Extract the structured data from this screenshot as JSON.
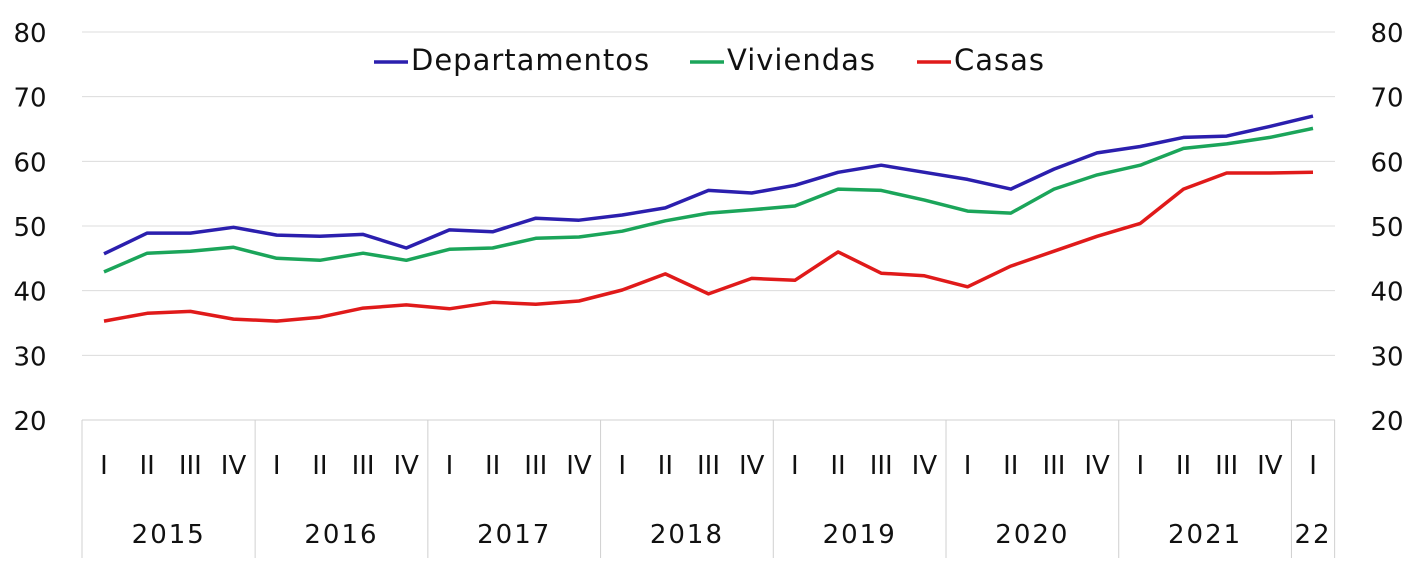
{
  "chart_data": {
    "type": "line",
    "title": "",
    "xlabel": "",
    "ylabel": "",
    "ylim": [
      20,
      80
    ],
    "yticks": [
      "20",
      "30",
      "40",
      "50",
      "60",
      "70",
      "80"
    ],
    "grid": true,
    "legend_position": "top-center",
    "quarters": [
      "I",
      "II",
      "III",
      "IV",
      "I",
      "II",
      "III",
      "IV",
      "I",
      "II",
      "III",
      "IV",
      "I",
      "II",
      "III",
      "IV",
      "I",
      "II",
      "III",
      "IV",
      "I",
      "II",
      "III",
      "IV",
      "I",
      "II",
      "III",
      "IV",
      "I"
    ],
    "years": [
      {
        "label": "2015",
        "quarters": 4
      },
      {
        "label": "2016",
        "quarters": 4
      },
      {
        "label": "2017",
        "quarters": 4
      },
      {
        "label": "2018",
        "quarters": 4
      },
      {
        "label": "2019",
        "quarters": 4
      },
      {
        "label": "2020",
        "quarters": 4
      },
      {
        "label": "2021",
        "quarters": 4
      },
      {
        "label": "22",
        "quarters": 1
      }
    ],
    "series": [
      {
        "name": "Departamentos",
        "color": "#2b1fae",
        "values": [
          45.7,
          48.9,
          48.9,
          49.8,
          48.6,
          48.4,
          48.7,
          46.6,
          49.4,
          49.1,
          51.2,
          50.9,
          51.7,
          52.8,
          55.5,
          55.1,
          56.3,
          58.3,
          59.4,
          58.3,
          57.2,
          55.7,
          58.8,
          61.3,
          62.3,
          63.7,
          63.9,
          65.4,
          67.0
        ]
      },
      {
        "name": "Viviendas",
        "color": "#1ba55a",
        "values": [
          42.9,
          45.8,
          46.1,
          46.7,
          45.0,
          44.7,
          45.8,
          44.7,
          46.4,
          46.6,
          48.1,
          48.3,
          49.2,
          50.8,
          52.0,
          52.5,
          53.1,
          55.7,
          55.5,
          54.0,
          52.3,
          52.0,
          55.7,
          57.9,
          59.4,
          62.0,
          62.7,
          63.7,
          65.1
        ]
      },
      {
        "name": "Casas",
        "color": "#e01a1a",
        "values": [
          35.3,
          36.5,
          36.8,
          35.6,
          35.3,
          35.9,
          37.3,
          37.8,
          37.2,
          38.2,
          37.9,
          38.4,
          40.1,
          42.6,
          39.5,
          41.9,
          41.6,
          46.0,
          42.7,
          42.3,
          40.6,
          43.8,
          46.1,
          48.4,
          50.4,
          55.7,
          58.2,
          58.2,
          58.3
        ]
      }
    ]
  }
}
